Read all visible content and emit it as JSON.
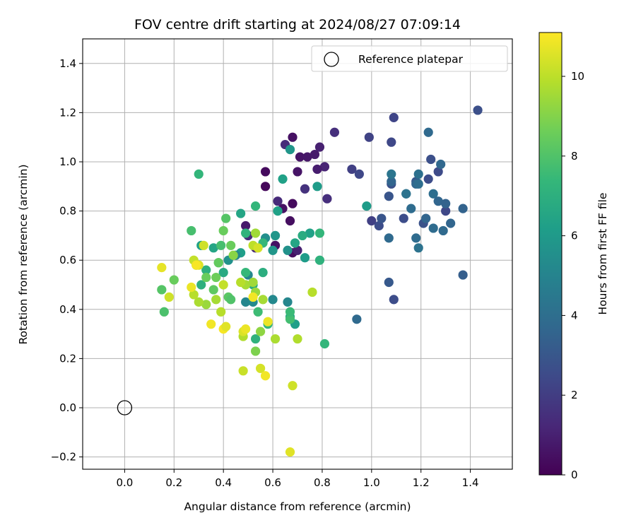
{
  "chart_data": {
    "type": "scatter",
    "title": "FOV centre drift starting at 2024/08/27 07:09:14",
    "xlabel": "Angular distance from reference (arcmin)",
    "ylabel": "Rotation from reference (arcmin)",
    "xlim": [
      -0.17,
      1.57
    ],
    "ylim": [
      -0.25,
      1.5
    ],
    "xticks": [
      0.0,
      0.2,
      0.4,
      0.6,
      0.8,
      1.0,
      1.2,
      1.4
    ],
    "xtick_labels": [
      "0.0",
      "0.2",
      "0.4",
      "0.6",
      "0.8",
      "1.0",
      "1.2",
      "1.4"
    ],
    "yticks": [
      -0.2,
      0.0,
      0.2,
      0.4,
      0.6,
      0.8,
      1.0,
      1.2,
      1.4
    ],
    "ytick_labels": [
      "−0.2",
      "0.0",
      "0.2",
      "0.4",
      "0.6",
      "0.8",
      "1.0",
      "1.2",
      "1.4"
    ],
    "grid": true,
    "legend_placement": "top-right",
    "legend": [
      {
        "label": "Reference platepar",
        "marker": "open-circle"
      }
    ],
    "reference_point": {
      "x": 0.0,
      "y": 0.0
    },
    "colorbar": {
      "label": "Hours from first FF file",
      "colormap": "viridis",
      "range": [
        0,
        11.1
      ],
      "ticks": [
        0,
        2,
        4,
        6,
        8,
        10
      ],
      "tick_labels": [
        "0",
        "2",
        "4",
        "6",
        "8",
        "10"
      ]
    },
    "points": [
      [
        0.57,
        0.96,
        0.3
      ],
      [
        0.57,
        0.9,
        0.2
      ],
      [
        0.68,
        1.1,
        0.5
      ],
      [
        0.71,
        1.02,
        0.6
      ],
      [
        0.74,
        1.02,
        0.7
      ],
      [
        0.77,
        1.03,
        0.8
      ],
      [
        0.79,
        1.06,
        1.0
      ],
      [
        0.81,
        0.98,
        1.1
      ],
      [
        0.78,
        0.97,
        0.9
      ],
      [
        0.7,
        0.96,
        0.6
      ],
      [
        0.65,
        1.07,
        1.4
      ],
      [
        0.68,
        0.83,
        0.3
      ],
      [
        0.67,
        0.76,
        0.4
      ],
      [
        0.64,
        0.81,
        0.5
      ],
      [
        0.62,
        0.84,
        1.3
      ],
      [
        0.61,
        0.66,
        0.5
      ],
      [
        0.68,
        0.63,
        0.4
      ],
      [
        0.73,
        0.89,
        1.6
      ],
      [
        0.82,
        0.85,
        1.5
      ],
      [
        0.85,
        1.12,
        1.5
      ],
      [
        0.7,
        0.64,
        1.0
      ],
      [
        0.53,
        0.65,
        1.2
      ],
      [
        0.5,
        0.7,
        1.4
      ],
      [
        0.49,
        0.74,
        0.8
      ],
      [
        0.92,
        0.97,
        2.1
      ],
      [
        0.95,
        0.95,
        2.4
      ],
      [
        0.99,
        1.1,
        2.2
      ],
      [
        1.09,
        1.18,
        2.3
      ],
      [
        1.08,
        1.08,
        2.4
      ],
      [
        1.0,
        0.76,
        2.1
      ],
      [
        1.03,
        0.74,
        2.6
      ],
      [
        1.04,
        0.77,
        2.9
      ],
      [
        1.07,
        0.86,
        2.9
      ],
      [
        1.08,
        0.91,
        2.8
      ],
      [
        1.13,
        0.77,
        2.6
      ],
      [
        1.18,
        0.92,
        3.0
      ],
      [
        1.21,
        0.75,
        2.8
      ],
      [
        1.23,
        0.93,
        2.6
      ],
      [
        1.24,
        1.01,
        2.7
      ],
      [
        1.27,
        0.96,
        2.5
      ],
      [
        1.3,
        0.8,
        2.4
      ],
      [
        1.43,
        1.21,
        2.7
      ],
      [
        1.37,
        0.54,
        3.3
      ],
      [
        1.09,
        0.44,
        2.6
      ],
      [
        1.07,
        0.51,
        3.1
      ],
      [
        1.08,
        0.92,
        3.6
      ],
      [
        1.08,
        0.95,
        4.3
      ],
      [
        1.14,
        0.87,
        4.1
      ],
      [
        1.16,
        0.81,
        3.9
      ],
      [
        1.18,
        0.69,
        3.9
      ],
      [
        1.18,
        0.91,
        3.7
      ],
      [
        1.19,
        0.65,
        4.2
      ],
      [
        1.19,
        0.91,
        4.0
      ],
      [
        1.19,
        0.95,
        4.1
      ],
      [
        1.22,
        0.77,
        3.6
      ],
      [
        1.23,
        1.12,
        3.8
      ],
      [
        1.25,
        0.73,
        3.9
      ],
      [
        1.25,
        0.87,
        4.0
      ],
      [
        1.27,
        0.84,
        3.6
      ],
      [
        1.28,
        0.99,
        3.7
      ],
      [
        1.29,
        0.72,
        3.8
      ],
      [
        1.3,
        0.83,
        3.5
      ],
      [
        1.32,
        0.75,
        3.6
      ],
      [
        1.37,
        0.81,
        3.5
      ],
      [
        1.07,
        0.69,
        3.8
      ],
      [
        0.94,
        0.36,
        3.8
      ],
      [
        1.14,
        0.87,
        4.2
      ],
      [
        0.98,
        0.82,
        6.1
      ],
      [
        0.67,
        1.05,
        5.8
      ],
      [
        0.64,
        0.93,
        6.3
      ],
      [
        0.78,
        0.9,
        6.1
      ],
      [
        0.57,
        0.69,
        5.5
      ],
      [
        0.6,
        0.64,
        5.8
      ],
      [
        0.61,
        0.7,
        5.8
      ],
      [
        0.66,
        0.64,
        5.6
      ],
      [
        0.69,
        0.67,
        6.5
      ],
      [
        0.73,
        0.61,
        6.1
      ],
      [
        0.75,
        0.71,
        6.3
      ],
      [
        0.6,
        0.44,
        5.2
      ],
      [
        0.66,
        0.43,
        5.1
      ],
      [
        0.67,
        0.37,
        6.6
      ],
      [
        0.69,
        0.34,
        6.2
      ],
      [
        0.49,
        0.43,
        5.1
      ],
      [
        0.5,
        0.54,
        5.1
      ],
      [
        0.47,
        0.63,
        6.2
      ],
      [
        0.42,
        0.6,
        5.6
      ],
      [
        0.45,
        0.62,
        5.2
      ],
      [
        0.52,
        0.43,
        5.3
      ],
      [
        0.4,
        0.55,
        6.7
      ],
      [
        0.36,
        0.65,
        6.5
      ],
      [
        0.31,
        0.66,
        6.3
      ],
      [
        0.62,
        0.8,
        6.3
      ],
      [
        0.72,
        0.7,
        6.8
      ],
      [
        0.33,
        0.56,
        7.0
      ],
      [
        0.31,
        0.5,
        7.0
      ],
      [
        0.38,
        0.59,
        7.5
      ],
      [
        0.39,
        0.66,
        7.8
      ],
      [
        0.41,
        0.77,
        8.1
      ],
      [
        0.47,
        0.79,
        6.5
      ],
      [
        0.53,
        0.82,
        7.3
      ],
      [
        0.3,
        0.95,
        7.3
      ],
      [
        0.27,
        0.72,
        7.8
      ],
      [
        0.49,
        0.71,
        7.2
      ],
      [
        0.49,
        0.55,
        7.4
      ],
      [
        0.54,
        0.39,
        7.6
      ],
      [
        0.53,
        0.28,
        7.1
      ],
      [
        0.58,
        0.34,
        7.4
      ],
      [
        0.67,
        0.36,
        7.7
      ],
      [
        0.67,
        0.39,
        7.5
      ],
      [
        0.81,
        0.26,
        7.3
      ],
      [
        0.79,
        0.6,
        7.1
      ],
      [
        0.79,
        0.71,
        7.3
      ],
      [
        0.56,
        0.55,
        6.9
      ],
      [
        0.56,
        0.67,
        7.4
      ],
      [
        0.52,
        0.5,
        6.9
      ],
      [
        0.16,
        0.39,
        7.9
      ],
      [
        0.15,
        0.48,
        8.1
      ],
      [
        0.2,
        0.52,
        8.5
      ],
      [
        0.29,
        0.58,
        8.2
      ],
      [
        0.33,
        0.53,
        8.5
      ],
      [
        0.36,
        0.48,
        8.3
      ],
      [
        0.37,
        0.53,
        8.6
      ],
      [
        0.38,
        0.59,
        8.4
      ],
      [
        0.4,
        0.72,
        8.5
      ],
      [
        0.42,
        0.45,
        8.2
      ],
      [
        0.43,
        0.44,
        8.0
      ],
      [
        0.43,
        0.66,
        8.5
      ],
      [
        0.55,
        0.31,
        9.2
      ],
      [
        0.53,
        0.23,
        8.9
      ],
      [
        0.48,
        0.29,
        9.8
      ],
      [
        0.49,
        0.5,
        9.6
      ],
      [
        0.52,
        0.51,
        9.5
      ],
      [
        0.56,
        0.44,
        9.6
      ],
      [
        0.53,
        0.47,
        9.4
      ],
      [
        0.53,
        0.71,
        9.5
      ],
      [
        0.52,
        0.66,
        10.0
      ],
      [
        0.54,
        0.65,
        10.4
      ],
      [
        0.61,
        0.28,
        9.7
      ],
      [
        0.7,
        0.28,
        9.8
      ],
      [
        0.76,
        0.47,
        9.9
      ],
      [
        0.47,
        0.51,
        9.9
      ],
      [
        0.44,
        0.62,
        9.1
      ],
      [
        0.39,
        0.39,
        9.9
      ],
      [
        0.4,
        0.5,
        10.1
      ],
      [
        0.37,
        0.44,
        9.6
      ],
      [
        0.33,
        0.42,
        9.4
      ],
      [
        0.3,
        0.43,
        9.7
      ],
      [
        0.28,
        0.46,
        9.9
      ],
      [
        0.27,
        0.49,
        10.8
      ],
      [
        0.28,
        0.6,
        10.1
      ],
      [
        0.3,
        0.58,
        10.5
      ],
      [
        0.29,
        0.58,
        11.0
      ],
      [
        0.32,
        0.66,
        10.3
      ],
      [
        0.18,
        0.45,
        10.3
      ],
      [
        0.15,
        0.57,
        10.7
      ],
      [
        0.35,
        0.34,
        10.9
      ],
      [
        0.4,
        0.32,
        11.0
      ],
      [
        0.41,
        0.33,
        10.6
      ],
      [
        0.48,
        0.31,
        10.5
      ],
      [
        0.48,
        0.15,
        10.2
      ],
      [
        0.55,
        0.16,
        10.4
      ],
      [
        0.57,
        0.13,
        10.9
      ],
      [
        0.58,
        0.35,
        10.8
      ],
      [
        0.68,
        0.09,
        10.3
      ],
      [
        0.67,
        -0.18,
        10.6
      ],
      [
        0.52,
        0.45,
        10.9
      ],
      [
        0.49,
        0.32,
        10.8
      ]
    ]
  }
}
